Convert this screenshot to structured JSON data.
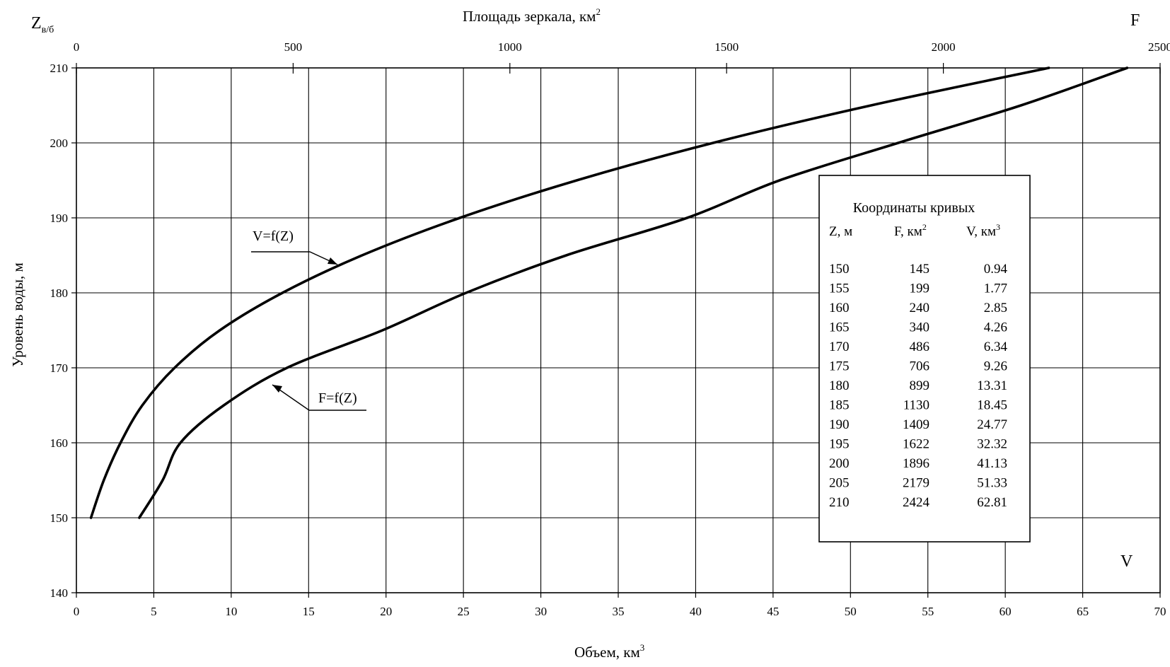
{
  "chart_data": {
    "type": "line",
    "title": "",
    "xlabel": "Объем, км",
    "xlabel_sup": "3",
    "x_corner_label": "V",
    "xlim": [
      0,
      70
    ],
    "x_ticks": [
      0,
      5,
      10,
      15,
      20,
      25,
      30,
      35,
      40,
      45,
      50,
      55,
      60,
      65,
      70
    ],
    "top_xlabel": "Площадь зеркала, км",
    "top_xlabel_sup": "2",
    "top_corner_label": "F",
    "top_xlim": [
      0,
      2500
    ],
    "top_x_ticks": [
      0,
      500,
      1000,
      1500,
      2000,
      2500
    ],
    "ylabel": "Уровень воды, м",
    "y_corner_label_main": "Z",
    "y_corner_label_sub": "в/б",
    "ylim": [
      140,
      210
    ],
    "y_ticks": [
      140,
      150,
      160,
      170,
      180,
      190,
      200,
      210
    ],
    "grid": true,
    "series": [
      {
        "name": "V=f(Z)",
        "axis": "bottom",
        "z": [
          150,
          155,
          160,
          165,
          170,
          175,
          180,
          185,
          190,
          195,
          200,
          205,
          210
        ],
        "values": [
          0.94,
          1.77,
          2.85,
          4.26,
          6.34,
          9.26,
          13.31,
          18.45,
          24.77,
          32.32,
          41.13,
          51.33,
          62.81
        ]
      },
      {
        "name": "F=f(Z)",
        "axis": "top",
        "z": [
          150,
          155,
          160,
          165,
          170,
          175,
          180,
          185,
          190,
          195,
          200,
          205,
          210
        ],
        "values": [
          145,
          199,
          240,
          340,
          486,
          706,
          899,
          1130,
          1409,
          1622,
          1896,
          2179,
          2424
        ]
      }
    ],
    "table": {
      "title": "Координаты кривых",
      "headers": [
        {
          "text": "Z, м",
          "sup": ""
        },
        {
          "text": "F, км",
          "sup": "2"
        },
        {
          "text": "V, км",
          "sup": "3"
        }
      ],
      "rows": [
        [
          "150",
          "145",
          "0.94"
        ],
        [
          "155",
          "199",
          "1.77"
        ],
        [
          "160",
          "240",
          "2.85"
        ],
        [
          "165",
          "340",
          "4.26"
        ],
        [
          "170",
          "486",
          "6.34"
        ],
        [
          "175",
          "706",
          "9.26"
        ],
        [
          "180",
          "899",
          "13.31"
        ],
        [
          "185",
          "1130",
          "18.45"
        ],
        [
          "190",
          "1409",
          "24.77"
        ],
        [
          "195",
          "1622",
          "32.32"
        ],
        [
          "200",
          "1896",
          "41.13"
        ],
        [
          "205",
          "2179",
          "51.33"
        ],
        [
          "210",
          "2424",
          "62.81"
        ]
      ]
    }
  }
}
